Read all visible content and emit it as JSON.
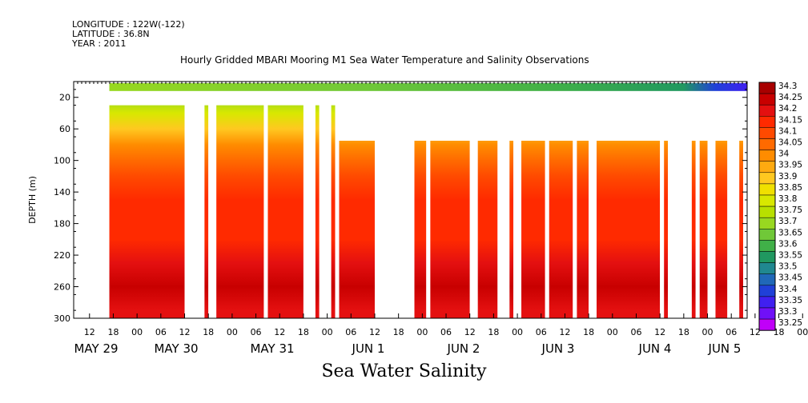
{
  "header": {
    "longitude": "LONGITUDE : 122W(-122)",
    "latitude": "LATITUDE : 36.8N",
    "year": "YEAR : 2011"
  },
  "chart_data": {
    "type": "heatmap",
    "title": "Hourly Gridded MBARI Mooring M1 Sea Water Temperature and Salinity Observations",
    "xlabel": "Sea Water Salinity",
    "ylabel": "DEPTH (m)",
    "ylim": [
      300,
      0
    ],
    "y_ticks": [
      20,
      60,
      100,
      140,
      180,
      220,
      260,
      300
    ],
    "x_hour_ticks": [
      "12",
      "18",
      "00",
      "06",
      "12",
      "18",
      "00",
      "06",
      "12",
      "18",
      "00",
      "06",
      "12",
      "18",
      "00",
      "06",
      "12",
      "18",
      "00",
      "06",
      "12",
      "18",
      "00",
      "06",
      "12",
      "18",
      "00",
      "06",
      "12",
      "18",
      "00",
      "06"
    ],
    "x_day_labels": [
      "MAY 29",
      "MAY 30",
      "MAY 31",
      "JUN  1",
      "JUN  2",
      "JUN  3",
      "JUN  4",
      "JUN  5"
    ],
    "colorbar": {
      "levels": [
        "34.3",
        "34.25",
        "34.2",
        "34.15",
        "34.1",
        "34.05",
        "34",
        "33.95",
        "33.9",
        "33.85",
        "33.8",
        "33.75",
        "33.7",
        "33.65",
        "33.6",
        "33.55",
        "33.5",
        "33.45",
        "33.4",
        "33.35",
        "33.3",
        "33.25"
      ],
      "colors": [
        "#a80000",
        "#c80000",
        "#e41010",
        "#ff2a00",
        "#ff4a00",
        "#ff6a00",
        "#ff8c00",
        "#ffaa10",
        "#ffc820",
        "#f0e000",
        "#d8e800",
        "#b8e000",
        "#98d820",
        "#70c838",
        "#40b048",
        "#209860",
        "#208890",
        "#2068b8",
        "#2040d8",
        "#4020f0",
        "#7010f8",
        "#c000f8"
      ]
    },
    "x_range": [
      "2011-05-29 08:00",
      "2011-06-05 10:00"
    ],
    "surface_band": {
      "depth_range": [
        2,
        12
      ],
      "x_start": "2011-05-29 17:00",
      "values_description": "33.7-33.6 trending to 33.35 near JUN 5"
    },
    "profile_by_depth": [
      {
        "depth": 10,
        "salinity": 33.65
      },
      {
        "depth": 40,
        "salinity": 33.8
      },
      {
        "depth": 60,
        "salinity": 33.9
      },
      {
        "depth": 80,
        "salinity": 34.0
      },
      {
        "depth": 100,
        "salinity": 34.05
      },
      {
        "depth": 120,
        "salinity": 34.1
      },
      {
        "depth": 150,
        "salinity": 34.15
      },
      {
        "depth": 200,
        "salinity": 34.15
      },
      {
        "depth": 230,
        "salinity": 34.2
      },
      {
        "depth": 260,
        "salinity": 34.25
      },
      {
        "depth": 290,
        "salinity": 34.2
      }
    ],
    "data_columns": [
      {
        "start": "2011-05-29 17:00",
        "end": "2011-05-30 12:00",
        "top_depth": 30
      },
      {
        "start": "2011-05-30 17:00",
        "end": "2011-05-30 18:00",
        "top_depth": 30
      },
      {
        "start": "2011-05-30 20:00",
        "end": "2011-05-31 08:00",
        "top_depth": 30
      },
      {
        "start": "2011-05-31 09:00",
        "end": "2011-05-31 18:00",
        "top_depth": 30
      },
      {
        "start": "2011-05-31 21:00",
        "end": "2011-05-31 22:00",
        "top_depth": 30
      },
      {
        "start": "2011-06-01 01:00",
        "end": "2011-06-01 02:00",
        "top_depth": 30
      },
      {
        "start": "2011-06-01 03:00",
        "end": "2011-06-01 12:00",
        "top_depth": 75
      },
      {
        "start": "2011-06-01 22:00",
        "end": "2011-06-02 01:00",
        "top_depth": 75
      },
      {
        "start": "2011-06-02 02:00",
        "end": "2011-06-02 12:00",
        "top_depth": 75
      },
      {
        "start": "2011-06-02 14:00",
        "end": "2011-06-02 19:00",
        "top_depth": 75
      },
      {
        "start": "2011-06-02 22:00",
        "end": "2011-06-02 23:00",
        "top_depth": 75
      },
      {
        "start": "2011-06-03 01:00",
        "end": "2011-06-03 07:00",
        "top_depth": 75
      },
      {
        "start": "2011-06-03 08:00",
        "end": "2011-06-03 14:00",
        "top_depth": 75
      },
      {
        "start": "2011-06-03 15:00",
        "end": "2011-06-03 18:00",
        "top_depth": 75
      },
      {
        "start": "2011-06-03 20:00",
        "end": "2011-06-04 12:00",
        "top_depth": 75
      },
      {
        "start": "2011-06-04 13:00",
        "end": "2011-06-04 14:00",
        "top_depth": 75
      },
      {
        "start": "2011-06-04 20:00",
        "end": "2011-06-04 21:00",
        "top_depth": 75
      },
      {
        "start": "2011-06-04 22:00",
        "end": "2011-06-05 00:00",
        "top_depth": 75
      },
      {
        "start": "2011-06-05 02:00",
        "end": "2011-06-05 05:00",
        "top_depth": 75
      },
      {
        "start": "2011-06-05 08:00",
        "end": "2011-06-05 09:00",
        "top_depth": 75
      }
    ]
  }
}
